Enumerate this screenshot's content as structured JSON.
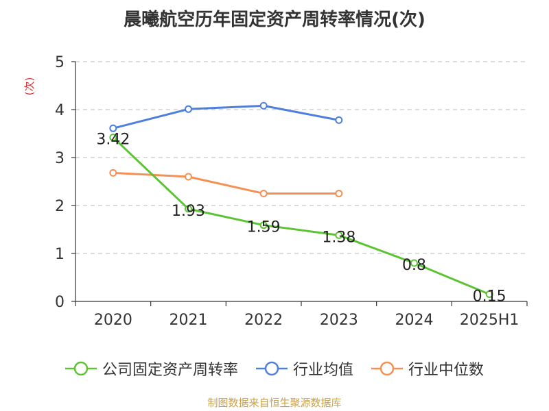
{
  "chart_data": {
    "type": "line",
    "title": "晨曦航空历年固定资产周转率情况(次)",
    "ylabel": "(次)",
    "categories": [
      "2020",
      "2021",
      "2022",
      "2023",
      "2024",
      "2025H1"
    ],
    "ylim": [
      0,
      5
    ],
    "yticks": [
      0,
      1,
      2,
      3,
      4,
      5
    ],
    "grid": true,
    "legend_position": "bottom",
    "series": [
      {
        "name": "公司固定资产周转率",
        "color": "#5cc433",
        "values": [
          3.42,
          1.93,
          1.59,
          1.38,
          0.8,
          0.15
        ],
        "data_labels": [
          "3.42",
          "1.93",
          "1.59",
          "1.38",
          "0.8",
          "0.15"
        ]
      },
      {
        "name": "行业均值",
        "color": "#4f7fdd",
        "values": [
          3.61,
          4.01,
          4.08,
          3.78,
          null,
          null
        ]
      },
      {
        "name": "行业中位数",
        "color": "#f59054",
        "values": [
          2.68,
          2.6,
          2.25,
          2.25,
          null,
          null
        ]
      }
    ]
  },
  "source_text": "制图数据来自恒生聚源数据库"
}
